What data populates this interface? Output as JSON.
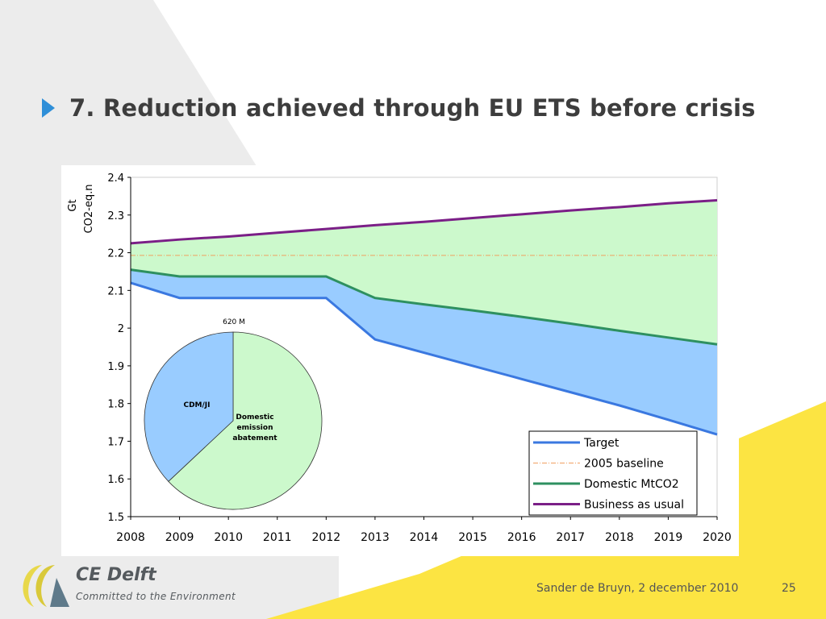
{
  "slide": {
    "title": "7. Reduction achieved through EU ETS before crisis",
    "footer_author": "Sander de Bruyn, 2 december 2010",
    "page_number": "25",
    "logo_name": "CE Delft",
    "logo_tagline": "Committed to the Environment"
  },
  "colors": {
    "accent_bullet": "#2f8fd8",
    "bau_fill": "#ccf9cc",
    "target_fill": "#99ccff",
    "target_line": "#3a78e0",
    "baseline_line": "#f0a060",
    "domestic_line": "#2e9060",
    "bau_line": "#7b1f87",
    "pie_green": "#ccf9cc",
    "pie_blue": "#99ccff"
  },
  "chart_data": [
    {
      "type": "area",
      "ylabel_line1": "Gt",
      "ylabel_line2": "CO2-eq.n",
      "x": [
        2008,
        2009,
        2010,
        2011,
        2012,
        2013,
        2014,
        2015,
        2016,
        2017,
        2018,
        2019,
        2020
      ],
      "x_ticks": [
        "2008",
        "2009",
        "2010",
        "2011",
        "2012",
        "2013",
        "2014",
        "2015",
        "2016",
        "2017",
        "2018",
        "2019",
        "2020"
      ],
      "y_ticks": [
        "1.5",
        "1.6",
        "1.7",
        "1.8",
        "1.9",
        "2",
        "2.1",
        "2.2",
        "2.3",
        "2.4"
      ],
      "ylim": [
        1.5,
        2.4
      ],
      "grid": false,
      "legend_position": "bottom-right",
      "series": [
        {
          "name": "Target",
          "values": [
            2.12,
            2.08,
            2.08,
            2.08,
            2.08,
            1.97,
            1.935,
            1.9,
            1.865,
            1.83,
            1.795,
            1.757,
            1.718
          ]
        },
        {
          "name": "2005 baseline",
          "values": [
            2.193,
            2.193,
            2.193,
            2.193,
            2.193,
            2.193,
            2.193,
            2.193,
            2.193,
            2.193,
            2.193,
            2.193,
            2.193
          ]
        },
        {
          "name": "Domestic MtCO2",
          "values": [
            2.155,
            2.137,
            2.137,
            2.137,
            2.137,
            2.08,
            2.063,
            2.047,
            2.03,
            2.012,
            1.993,
            1.975,
            1.957
          ]
        },
        {
          "name": "Business as usual",
          "values": [
            2.225,
            2.235,
            2.243,
            2.253,
            2.263,
            2.273,
            2.282,
            2.292,
            2.302,
            2.312,
            2.321,
            2.331,
            2.339
          ]
        }
      ]
    },
    {
      "type": "pie",
      "title": "620 M",
      "slices": [
        {
          "label": "Domestic emission abatement",
          "label_lines": [
            "Domestic",
            "emission",
            "abatement"
          ],
          "value": 63
        },
        {
          "label": "CDM/JI",
          "label_lines": [
            "CDM/JI"
          ],
          "value": 37
        }
      ]
    }
  ]
}
